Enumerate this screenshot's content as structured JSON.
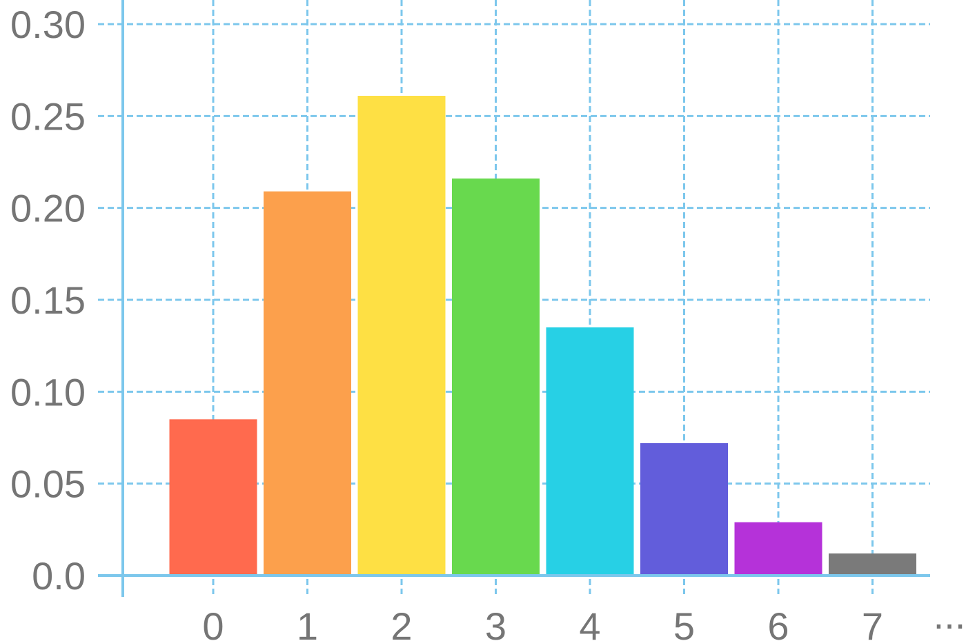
{
  "chart_data": {
    "type": "bar",
    "categories": [
      "0",
      "1",
      "2",
      "3",
      "4",
      "5",
      "6",
      "7"
    ],
    "values": [
      0.085,
      0.209,
      0.261,
      0.216,
      0.135,
      0.072,
      0.029,
      0.012
    ],
    "colors": [
      "#ff6a4e",
      "#fca04c",
      "#fee044",
      "#68d94e",
      "#27d0e5",
      "#625ddb",
      "#b532d9",
      "#7a7a7a"
    ],
    "title": "",
    "xlabel": "",
    "ylabel": "",
    "ylim": [
      0,
      0.3
    ],
    "yticks": [
      "0.0",
      "0.05",
      "0.10",
      "0.15",
      "0.20",
      "0.25",
      "0.30"
    ],
    "x_continuation": "...",
    "grid": true,
    "grid_color": "#7cc7ec",
    "tick_label_color": "#757575"
  }
}
